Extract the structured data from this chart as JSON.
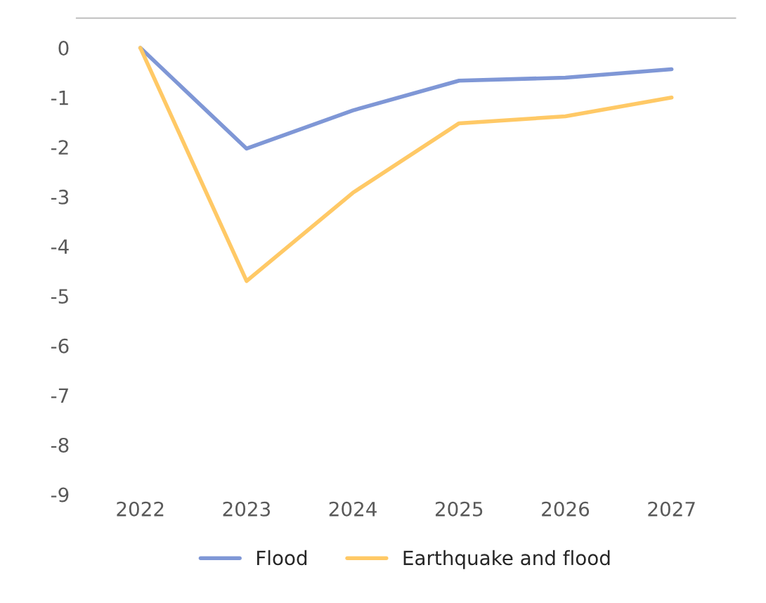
{
  "chart_data": {
    "type": "line",
    "categories": [
      "2022",
      "2023",
      "2024",
      "2025",
      "2026",
      "2027"
    ],
    "series": [
      {
        "name": "Flood",
        "color": "#7f97d6",
        "values": [
          0,
          -2.03,
          -1.26,
          -0.66,
          -0.6,
          -0.43
        ]
      },
      {
        "name": "Earthquake and flood",
        "color": "#ffc966",
        "values": [
          0,
          -4.7,
          -2.92,
          -1.52,
          -1.38,
          -1.0
        ]
      }
    ],
    "ylim": [
      -9,
      0.6
    ],
    "yticks": [
      -9,
      -8,
      -7,
      -6,
      -5,
      -4,
      -3,
      -2,
      -1,
      0
    ],
    "grid": false,
    "legend": "bottom",
    "marker": "none",
    "line_style": "solid"
  }
}
